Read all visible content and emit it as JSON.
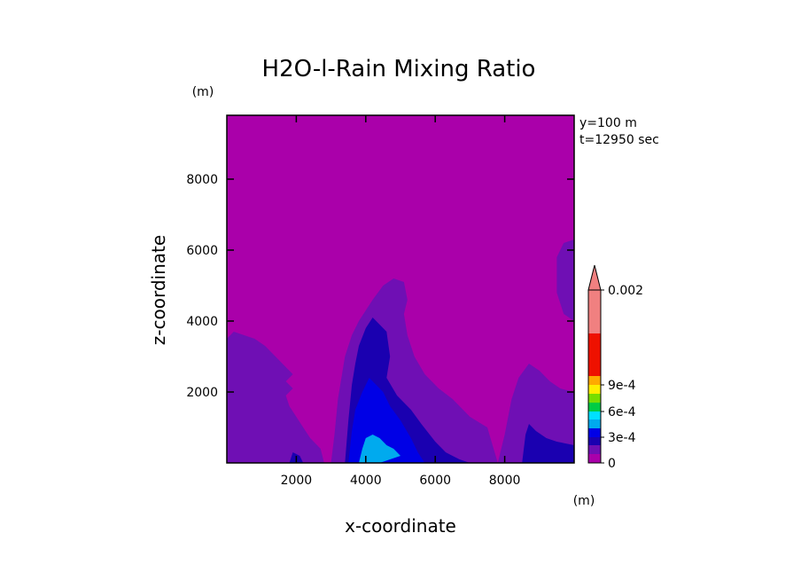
{
  "chart_data": {
    "type": "heatmap",
    "title": "H2O-l-Rain Mixing Ratio",
    "xlabel": "x-coordinate",
    "ylabel": "z-coordinate",
    "x_unit": "(m)",
    "y_unit": "(m)",
    "annotations": [
      "y=100 m",
      "t=12950 sec"
    ],
    "xlim": [
      0,
      10000
    ],
    "ylim": [
      0,
      9800
    ],
    "x_ticks": [
      "2000",
      "4000",
      "6000",
      "8000"
    ],
    "y_ticks": [
      "2000",
      "4000",
      "6000",
      "8000"
    ],
    "x_tick_values": [
      2000,
      4000,
      6000,
      8000
    ],
    "y_tick_values": [
      2000,
      4000,
      6000,
      8000
    ],
    "colorbar": {
      "levels": [
        0,
        0.0001,
        0.0002,
        0.0003,
        0.0004,
        0.0005,
        0.0006,
        0.0007,
        0.0008,
        0.0009,
        0.001,
        0.0015,
        0.002
      ],
      "colors": [
        "#aa00aa",
        "#6f0fb4",
        "#1a00b0",
        "#0000e6",
        "#00aaee",
        "#00e0ff",
        "#00cc44",
        "#77dd00",
        "#ffee00",
        "#ffaa00",
        "#ee7700",
        "#ee1100",
        "#f08080"
      ],
      "tick_labels": [
        "0",
        "3e-4",
        "6e-4",
        "9e-4",
        "0.002"
      ],
      "tick_values": [
        0,
        0.0003,
        0.0006,
        0.0009,
        0.002
      ],
      "extend": "max"
    },
    "regions": [
      {
        "level": 0,
        "poly": [
          [
            0,
            0
          ],
          [
            10000,
            0
          ],
          [
            10000,
            9800
          ],
          [
            0,
            9800
          ]
        ]
      },
      {
        "level": 0.0001,
        "poly": [
          [
            0,
            0
          ],
          [
            0,
            900
          ],
          [
            300,
            800
          ],
          [
            500,
            600
          ],
          [
            800,
            500
          ],
          [
            1100,
            700
          ],
          [
            1300,
            600
          ],
          [
            1500,
            300
          ],
          [
            1800,
            200
          ],
          [
            2100,
            300
          ],
          [
            2300,
            500
          ],
          [
            2500,
            400
          ],
          [
            2700,
            0
          ]
        ]
      },
      {
        "level": 0.0001,
        "poly": [
          [
            0,
            3500
          ],
          [
            200,
            3700
          ],
          [
            500,
            3600
          ],
          [
            800,
            3500
          ],
          [
            1100,
            3300
          ],
          [
            1400,
            3000
          ],
          [
            1700,
            2700
          ],
          [
            1900,
            2500
          ],
          [
            1700,
            2300
          ],
          [
            1900,
            2100
          ],
          [
            1700,
            1900
          ],
          [
            1800,
            1600
          ],
          [
            2000,
            1300
          ],
          [
            2200,
            1000
          ],
          [
            2400,
            700
          ],
          [
            2700,
            400
          ],
          [
            2800,
            0
          ],
          [
            0,
            0
          ]
        ]
      },
      {
        "level": 0.0001,
        "poly": [
          [
            3000,
            0
          ],
          [
            3100,
            800
          ],
          [
            3200,
            1800
          ],
          [
            3400,
            3000
          ],
          [
            3600,
            3600
          ],
          [
            3800,
            4000
          ],
          [
            4000,
            4300
          ],
          [
            4200,
            4600
          ],
          [
            4500,
            5000
          ],
          [
            4800,
            5200
          ],
          [
            5100,
            5100
          ],
          [
            5200,
            4600
          ],
          [
            5100,
            4200
          ],
          [
            5200,
            3600
          ],
          [
            5400,
            3000
          ],
          [
            5700,
            2500
          ],
          [
            6100,
            2100
          ],
          [
            6500,
            1800
          ],
          [
            7000,
            1300
          ],
          [
            7500,
            1000
          ],
          [
            7800,
            0
          ]
        ]
      },
      {
        "level": 0.0001,
        "poly": [
          [
            7800,
            0
          ],
          [
            7900,
            400
          ],
          [
            8000,
            800
          ],
          [
            8100,
            1300
          ],
          [
            8200,
            1800
          ],
          [
            8400,
            2400
          ],
          [
            8700,
            2800
          ],
          [
            9000,
            2600
          ],
          [
            9300,
            2300
          ],
          [
            9600,
            2100
          ],
          [
            10000,
            2000
          ],
          [
            10000,
            0
          ]
        ]
      },
      {
        "level": 0.0001,
        "poly": [
          [
            9500,
            5800
          ],
          [
            9700,
            6200
          ],
          [
            10000,
            6300
          ],
          [
            10000,
            4000
          ],
          [
            9700,
            4200
          ],
          [
            9500,
            4800
          ]
        ]
      },
      {
        "level": 0.0002,
        "poly": [
          [
            3400,
            0
          ],
          [
            3500,
            1200
          ],
          [
            3600,
            2200
          ],
          [
            3700,
            2800
          ],
          [
            3800,
            3300
          ],
          [
            4000,
            3800
          ],
          [
            4200,
            4100
          ],
          [
            4400,
            3900
          ],
          [
            4600,
            3700
          ],
          [
            4700,
            3000
          ],
          [
            4600,
            2400
          ],
          [
            4900,
            1900
          ],
          [
            5300,
            1500
          ],
          [
            5600,
            1100
          ],
          [
            6000,
            600
          ],
          [
            6300,
            300
          ],
          [
            6700,
            100
          ],
          [
            7000,
            0
          ]
        ]
      },
      {
        "level": 0.0002,
        "poly": [
          [
            8500,
            0
          ],
          [
            8600,
            800
          ],
          [
            8700,
            1100
          ],
          [
            8900,
            900
          ],
          [
            9200,
            700
          ],
          [
            9500,
            600
          ],
          [
            10000,
            500
          ],
          [
            10000,
            0
          ]
        ]
      },
      {
        "level": 0.0002,
        "poly": [
          [
            1800,
            0
          ],
          [
            1900,
            300
          ],
          [
            2100,
            200
          ],
          [
            2200,
            0
          ]
        ]
      },
      {
        "level": 0.0003,
        "poly": [
          [
            3500,
            0
          ],
          [
            3600,
            900
          ],
          [
            3700,
            1500
          ],
          [
            3900,
            2000
          ],
          [
            4100,
            2400
          ],
          [
            4300,
            2200
          ],
          [
            4500,
            2000
          ],
          [
            4700,
            1600
          ],
          [
            5000,
            1200
          ],
          [
            5300,
            700
          ],
          [
            5500,
            300
          ],
          [
            5700,
            0
          ]
        ]
      },
      {
        "level": 0.0004,
        "poly": [
          [
            3800,
            0
          ],
          [
            3900,
            400
          ],
          [
            4000,
            700
          ],
          [
            4200,
            800
          ],
          [
            4400,
            700
          ],
          [
            4600,
            500
          ],
          [
            4800,
            400
          ],
          [
            5000,
            200
          ],
          [
            4700,
            100
          ],
          [
            4400,
            0
          ]
        ]
      },
      {
        "level": 0.0004,
        "poly": [
          [
            3900,
            0
          ],
          [
            3900,
            200
          ],
          [
            4100,
            300
          ],
          [
            4200,
            0
          ]
        ]
      }
    ]
  }
}
